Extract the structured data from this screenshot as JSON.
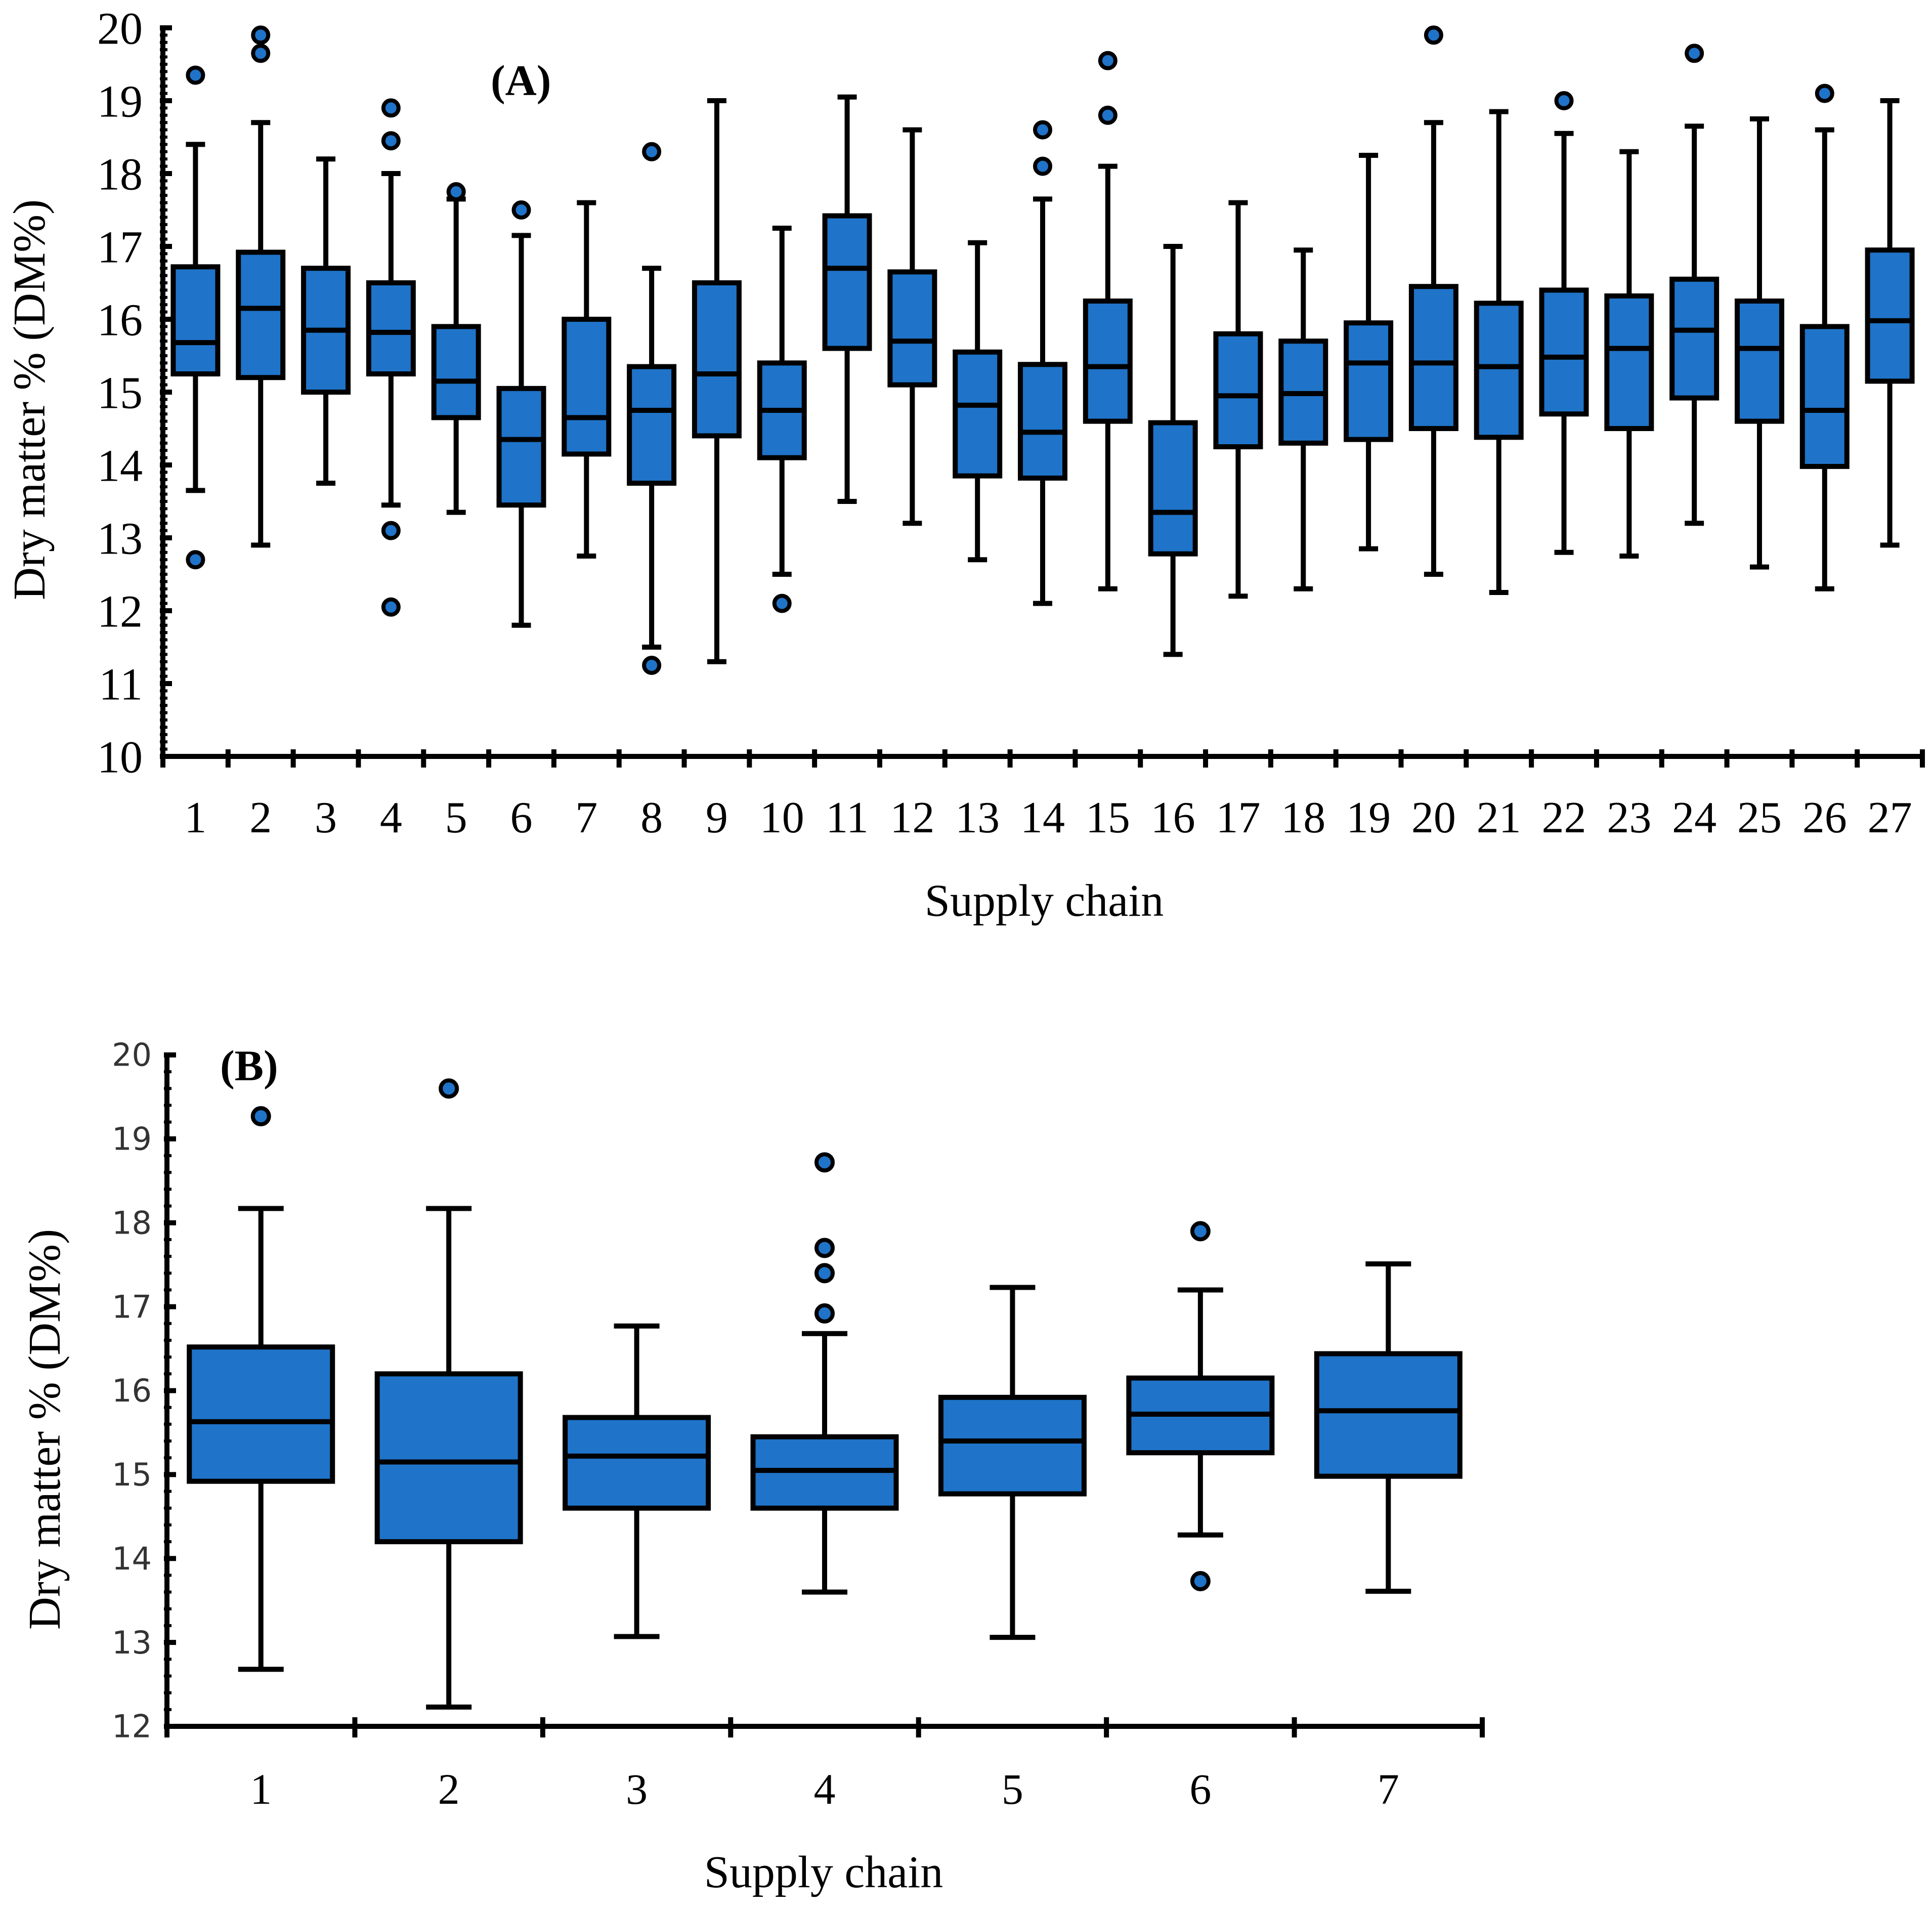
{
  "chart_data": [
    {
      "type": "boxplot",
      "panel_label": "(A)",
      "xlabel": "Supply chain",
      "ylabel": "Dry matter % (DM%)",
      "ylim": [
        10,
        20
      ],
      "yticks": [
        "10",
        "11",
        "12",
        "13",
        "14",
        "15",
        "16",
        "17",
        "18",
        "19",
        "20"
      ],
      "box_color": "#1f73c8",
      "categories": [
        "1",
        "2",
        "3",
        "4",
        "5",
        "6",
        "7",
        "8",
        "9",
        "10",
        "11",
        "12",
        "13",
        "14",
        "15",
        "16",
        "17",
        "18",
        "19",
        "20",
        "21",
        "22",
        "23",
        "24",
        "25",
        "26",
        "27"
      ],
      "boxes": [
        {
          "whisker_low": 13.65,
          "q1": 15.25,
          "median": 15.68,
          "q3": 16.72,
          "whisker_high": 18.4,
          "outliers": [
            19.35,
            12.7
          ]
        },
        {
          "whisker_low": 12.9,
          "q1": 15.2,
          "median": 16.15,
          "q3": 16.92,
          "whisker_high": 18.7,
          "outliers": [
            19.9,
            19.65
          ]
        },
        {
          "whisker_low": 13.75,
          "q1": 15.0,
          "median": 15.85,
          "q3": 16.7,
          "whisker_high": 18.2,
          "outliers": []
        },
        {
          "whisker_low": 13.45,
          "q1": 15.25,
          "median": 15.82,
          "q3": 16.5,
          "whisker_high": 18.0,
          "outliers": [
            18.9,
            18.45,
            13.1,
            12.05
          ]
        },
        {
          "whisker_low": 13.35,
          "q1": 14.65,
          "median": 15.15,
          "q3": 15.9,
          "whisker_high": 17.65,
          "outliers": [
            17.75
          ]
        },
        {
          "whisker_low": 11.8,
          "q1": 13.45,
          "median": 14.35,
          "q3": 15.05,
          "whisker_high": 17.15,
          "outliers": [
            17.5
          ]
        },
        {
          "whisker_low": 12.75,
          "q1": 14.15,
          "median": 14.65,
          "q3": 16.0,
          "whisker_high": 17.6,
          "outliers": []
        },
        {
          "whisker_low": 11.5,
          "q1": 13.75,
          "median": 14.75,
          "q3": 15.35,
          "whisker_high": 16.7,
          "outliers": [
            18.3,
            11.25
          ]
        },
        {
          "whisker_low": 11.3,
          "q1": 14.4,
          "median": 15.25,
          "q3": 16.5,
          "whisker_high": 19.0,
          "outliers": []
        },
        {
          "whisker_low": 12.5,
          "q1": 14.1,
          "median": 14.75,
          "q3": 15.4,
          "whisker_high": 17.25,
          "outliers": [
            12.1
          ]
        },
        {
          "whisker_low": 13.5,
          "q1": 15.6,
          "median": 16.7,
          "q3": 17.42,
          "whisker_high": 19.05,
          "outliers": []
        },
        {
          "whisker_low": 13.2,
          "q1": 15.1,
          "median": 15.7,
          "q3": 16.65,
          "whisker_high": 18.6,
          "outliers": []
        },
        {
          "whisker_low": 12.7,
          "q1": 13.85,
          "median": 14.82,
          "q3": 15.55,
          "whisker_high": 17.05,
          "outliers": []
        },
        {
          "whisker_low": 12.1,
          "q1": 13.82,
          "median": 14.45,
          "q3": 15.38,
          "whisker_high": 17.65,
          "outliers": [
            18.6,
            18.1
          ]
        },
        {
          "whisker_low": 12.3,
          "q1": 14.6,
          "median": 15.35,
          "q3": 16.25,
          "whisker_high": 18.1,
          "outliers": [
            19.55,
            18.8
          ]
        },
        {
          "whisker_low": 11.4,
          "q1": 12.78,
          "median": 13.35,
          "q3": 14.58,
          "whisker_high": 17.0,
          "outliers": []
        },
        {
          "whisker_low": 12.2,
          "q1": 14.25,
          "median": 14.95,
          "q3": 15.8,
          "whisker_high": 17.6,
          "outliers": []
        },
        {
          "whisker_low": 12.3,
          "q1": 14.3,
          "median": 14.98,
          "q3": 15.7,
          "whisker_high": 16.95,
          "outliers": []
        },
        {
          "whisker_low": 12.85,
          "q1": 14.35,
          "median": 15.4,
          "q3": 15.95,
          "whisker_high": 18.25,
          "outliers": []
        },
        {
          "whisker_low": 12.5,
          "q1": 14.5,
          "median": 15.4,
          "q3": 16.45,
          "whisker_high": 18.7,
          "outliers": [
            19.9
          ]
        },
        {
          "whisker_low": 12.25,
          "q1": 14.38,
          "median": 15.35,
          "q3": 16.22,
          "whisker_high": 18.85,
          "outliers": []
        },
        {
          "whisker_low": 12.8,
          "q1": 14.7,
          "median": 15.48,
          "q3": 16.4,
          "whisker_high": 18.55,
          "outliers": [
            19.0
          ]
        },
        {
          "whisker_low": 12.75,
          "q1": 14.5,
          "median": 15.6,
          "q3": 16.32,
          "whisker_high": 18.3,
          "outliers": []
        },
        {
          "whisker_low": 13.2,
          "q1": 14.92,
          "median": 15.85,
          "q3": 16.55,
          "whisker_high": 18.65,
          "outliers": [
            19.65
          ]
        },
        {
          "whisker_low": 12.6,
          "q1": 14.6,
          "median": 15.6,
          "q3": 16.25,
          "whisker_high": 18.75,
          "outliers": []
        },
        {
          "whisker_low": 12.3,
          "q1": 13.98,
          "median": 14.75,
          "q3": 15.9,
          "whisker_high": 18.6,
          "outliers": [
            19.1
          ]
        },
        {
          "whisker_low": 12.9,
          "q1": 15.15,
          "median": 15.98,
          "q3": 16.95,
          "whisker_high": 19.0,
          "outliers": []
        }
      ]
    },
    {
      "type": "boxplot",
      "panel_label": "(B)",
      "xlabel": "Supply chain",
      "ylabel": "Dry matter % (DM%)",
      "ylim": [
        12,
        20
      ],
      "yticks": [
        "12",
        "13",
        "14",
        "15",
        "16",
        "17",
        "18",
        "19",
        "20"
      ],
      "box_color": "#1f73c8",
      "categories": [
        "1",
        "2",
        "3",
        "4",
        "5",
        "6",
        "7"
      ],
      "boxes": [
        {
          "whisker_low": 12.68,
          "q1": 14.92,
          "median": 15.63,
          "q3": 16.52,
          "whisker_high": 18.17,
          "outliers": [
            19.27
          ]
        },
        {
          "whisker_low": 12.23,
          "q1": 14.2,
          "median": 15.15,
          "q3": 16.2,
          "whisker_high": 18.17,
          "outliers": [
            19.6
          ]
        },
        {
          "whisker_low": 13.07,
          "q1": 14.6,
          "median": 15.22,
          "q3": 15.68,
          "whisker_high": 16.77,
          "outliers": []
        },
        {
          "whisker_low": 13.6,
          "q1": 14.6,
          "median": 15.05,
          "q3": 15.45,
          "whisker_high": 16.68,
          "outliers": [
            18.72,
            17.7,
            17.4,
            16.92
          ]
        },
        {
          "whisker_low": 13.06,
          "q1": 14.77,
          "median": 15.4,
          "q3": 15.92,
          "whisker_high": 17.23,
          "outliers": []
        },
        {
          "whisker_low": 14.28,
          "q1": 15.26,
          "median": 15.72,
          "q3": 16.15,
          "whisker_high": 17.2,
          "outliers": [
            17.9,
            13.73
          ]
        },
        {
          "whisker_low": 13.61,
          "q1": 14.98,
          "median": 15.76,
          "q3": 16.44,
          "whisker_high": 17.51,
          "outliers": []
        }
      ]
    }
  ]
}
